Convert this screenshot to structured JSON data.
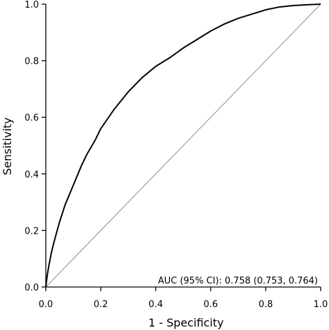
{
  "chart_data": {
    "type": "line",
    "xlabel": "1 - Specificity",
    "ylabel": "Sensitivity",
    "xlim": [
      0,
      1
    ],
    "ylim": [
      0,
      1
    ],
    "x_ticks": [
      "0.0",
      "0.2",
      "0.4",
      "0.6",
      "0.8",
      "1.0"
    ],
    "y_ticks": [
      "0.0",
      "0.2",
      "0.4",
      "0.6",
      "0.8",
      "1.0"
    ],
    "grid": false,
    "annotation": "AUC (95% CI): 0.758 (0.753, 0.764)",
    "series": [
      {
        "x": [
          0,
          0.005,
          0.01,
          0.02,
          0.03,
          0.05,
          0.07,
          0.1,
          0.13,
          0.15,
          0.18,
          0.2,
          0.25,
          0.3,
          0.35,
          0.4,
          0.45,
          0.5,
          0.55,
          0.6,
          0.65,
          0.7,
          0.75,
          0.8,
          0.85,
          0.9,
          0.95,
          1.0
        ],
        "y": [
          0,
          0.04,
          0.07,
          0.12,
          0.16,
          0.23,
          0.29,
          0.36,
          0.43,
          0.47,
          0.52,
          0.56,
          0.63,
          0.69,
          0.74,
          0.78,
          0.81,
          0.845,
          0.875,
          0.905,
          0.93,
          0.95,
          0.965,
          0.98,
          0.99,
          0.995,
          0.998,
          1.0
        ]
      },
      {
        "x": [
          0,
          1
        ],
        "y": [
          0,
          1
        ]
      }
    ]
  },
  "icons": {
    "reference_line_color": "#8c8c8c",
    "roc_line_color": "#000000"
  }
}
